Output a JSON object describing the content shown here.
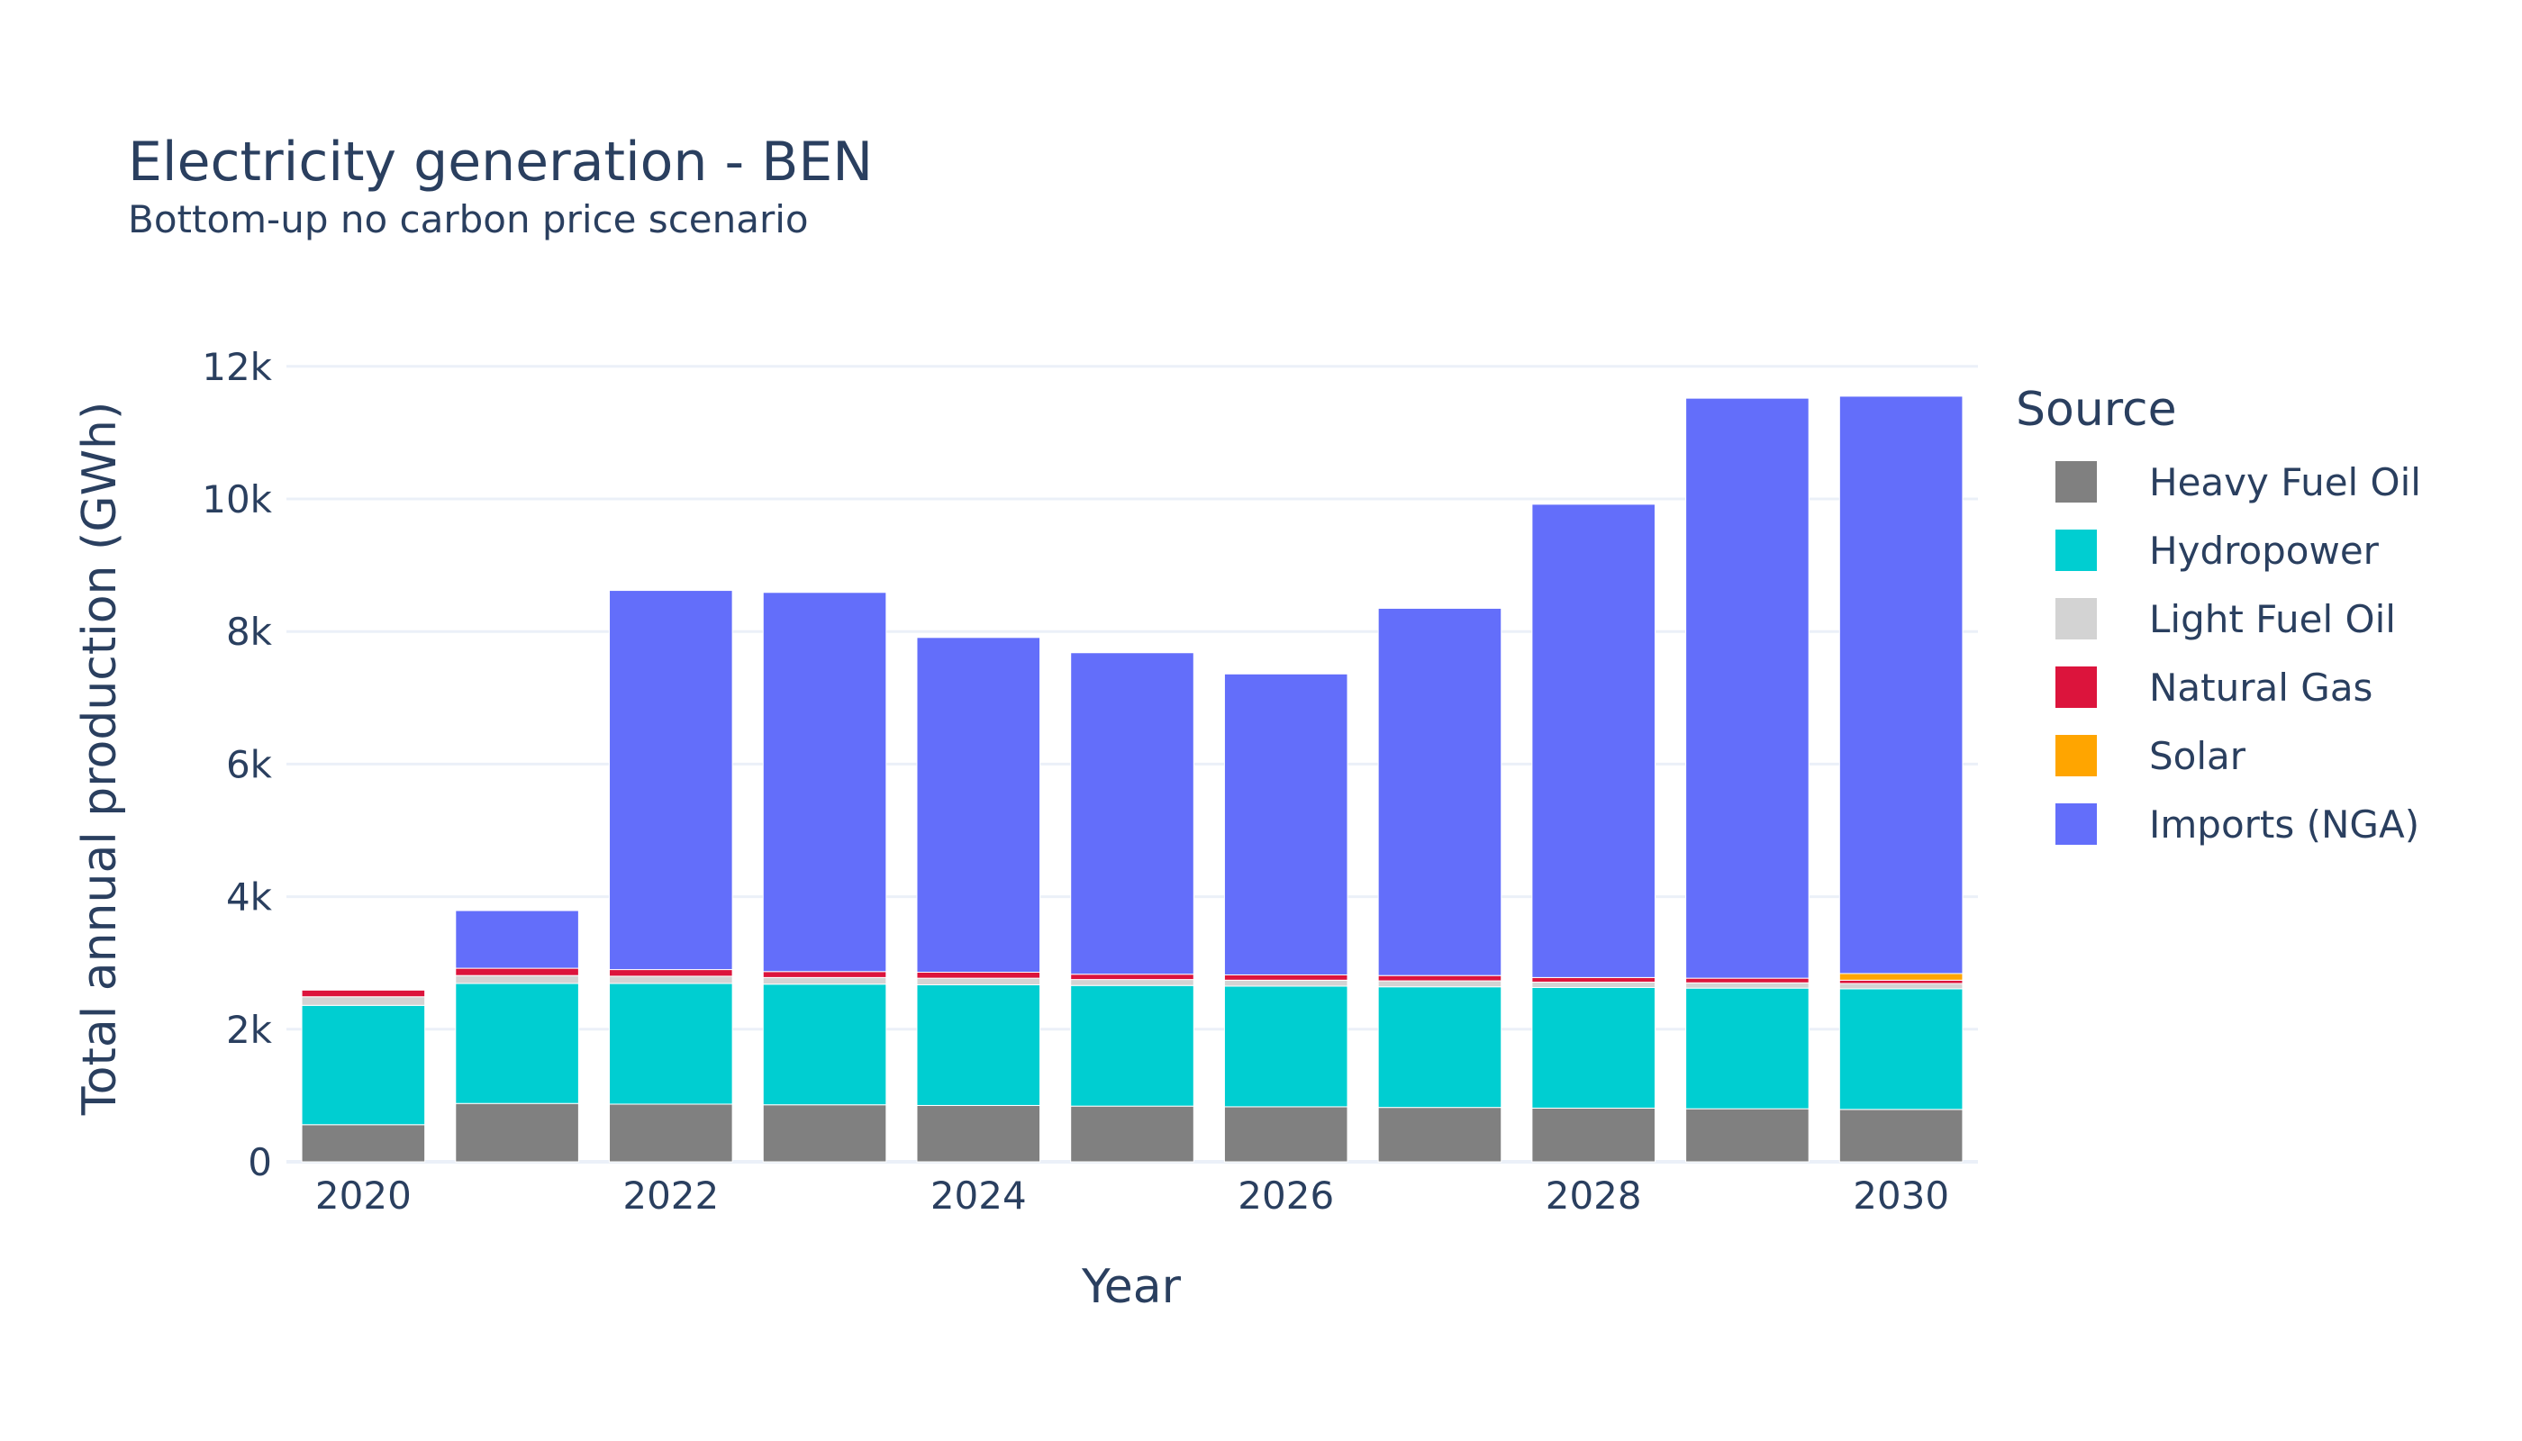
{
  "chart_data": {
    "type": "bar",
    "stacked": true,
    "title": "Electricity generation - BEN",
    "subtitle": "Bottom-up no carbon price scenario",
    "xlabel": "Year",
    "ylabel": "Total annual production (GWh)",
    "ylim": [
      0,
      12500
    ],
    "yticks": [
      0,
      2000,
      4000,
      6000,
      8000,
      10000,
      12000
    ],
    "ytick_labels": [
      "0",
      "2k",
      "4k",
      "6k",
      "8k",
      "10k",
      "12k"
    ],
    "xticks": [
      2020,
      2022,
      2024,
      2026,
      2028,
      2030
    ],
    "grid": true,
    "legend_title": "Source",
    "legend_position": "right",
    "categories": [
      2020,
      2021,
      2022,
      2023,
      2024,
      2025,
      2026,
      2027,
      2028,
      2029,
      2030
    ],
    "series": [
      {
        "name": "Heavy Fuel Oil",
        "color": "#808080",
        "values": [
          560,
          880,
          870,
          860,
          850,
          840,
          830,
          820,
          810,
          800,
          790
        ]
      },
      {
        "name": "Hydropower",
        "color": "#00CED1",
        "values": [
          1800,
          1810,
          1820,
          1820,
          1820,
          1820,
          1820,
          1820,
          1820,
          1820,
          1820
        ]
      },
      {
        "name": "Light Fuel Oil",
        "color": "#D3D3D3",
        "values": [
          130,
          120,
          110,
          100,
          100,
          90,
          90,
          90,
          80,
          80,
          80
        ]
      },
      {
        "name": "Natural Gas",
        "color": "#DC143C",
        "values": [
          100,
          110,
          100,
          90,
          90,
          80,
          80,
          80,
          70,
          70,
          50
        ]
      },
      {
        "name": "Solar",
        "color": "#FFA500",
        "values": [
          0,
          0,
          0,
          0,
          0,
          0,
          0,
          0,
          0,
          0,
          100
        ]
      },
      {
        "name": "Imports (NGA)",
        "color": "#636EFA",
        "values": [
          0,
          870,
          5720,
          5720,
          5050,
          4850,
          4540,
          5540,
          7140,
          8750,
          8710
        ]
      }
    ]
  }
}
